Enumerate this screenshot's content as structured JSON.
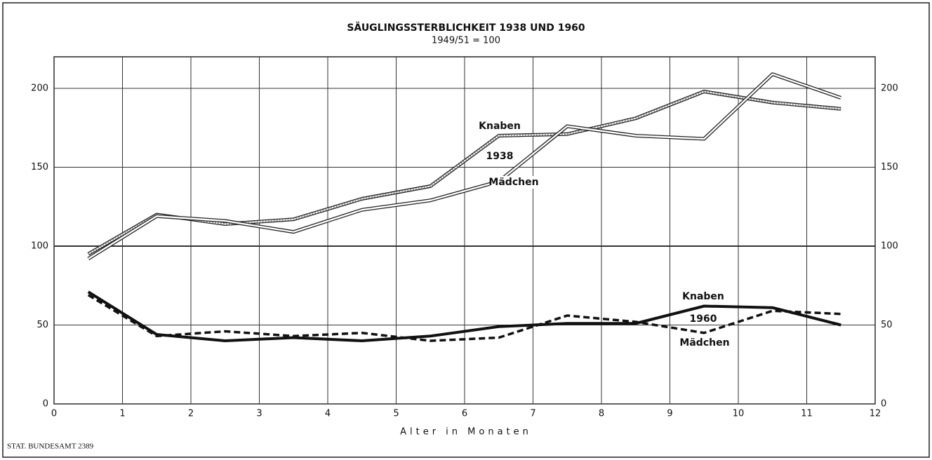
{
  "chart_data": {
    "type": "line",
    "title": "SÄUGLINGSSTERBLICHKEIT 1938 UND 1960",
    "subtitle": "1949/51 = 100",
    "x_label": "Alter in Monaten",
    "source": "STAT. BUNDESAMT 2389",
    "x": [
      0.5,
      1.5,
      2.5,
      3.5,
      4.5,
      5.5,
      6.5,
      7.5,
      8.5,
      9.5,
      10.5,
      11.5
    ],
    "series": [
      {
        "color": "#222222",
        "style": "double-dotted",
        "values": [
          95,
          120,
          114,
          117,
          130,
          138,
          170,
          171,
          181,
          198,
          191,
          187
        ]
      },
      {
        "color": "#222222",
        "style": "double",
        "values": [
          92,
          119,
          116,
          109,
          123,
          129,
          141,
          176,
          170,
          168,
          209,
          194
        ]
      },
      {
        "color": "#111111",
        "style": "thick",
        "values": [
          71,
          44,
          40,
          42,
          40,
          43,
          49,
          51,
          51,
          62,
          61,
          50
        ]
      },
      {
        "color": "#111111",
        "style": "dashed",
        "values": [
          69,
          43,
          46,
          43,
          45,
          40,
          42,
          56,
          52,
          45,
          59,
          57
        ]
      }
    ],
    "annotations": [
      "Knaben",
      "1938",
      "Mädchen",
      "Knaben",
      "1960",
      "Mädchen"
    ],
    "xlim": [
      0,
      12
    ],
    "xticks": [
      0,
      1,
      2,
      3,
      4,
      5,
      6,
      7,
      8,
      9,
      10,
      11,
      12
    ],
    "ylim": [
      0,
      220
    ],
    "yticks": [
      0,
      50,
      100,
      150,
      200
    ],
    "grid": true,
    "right_axis_labels": true
  }
}
